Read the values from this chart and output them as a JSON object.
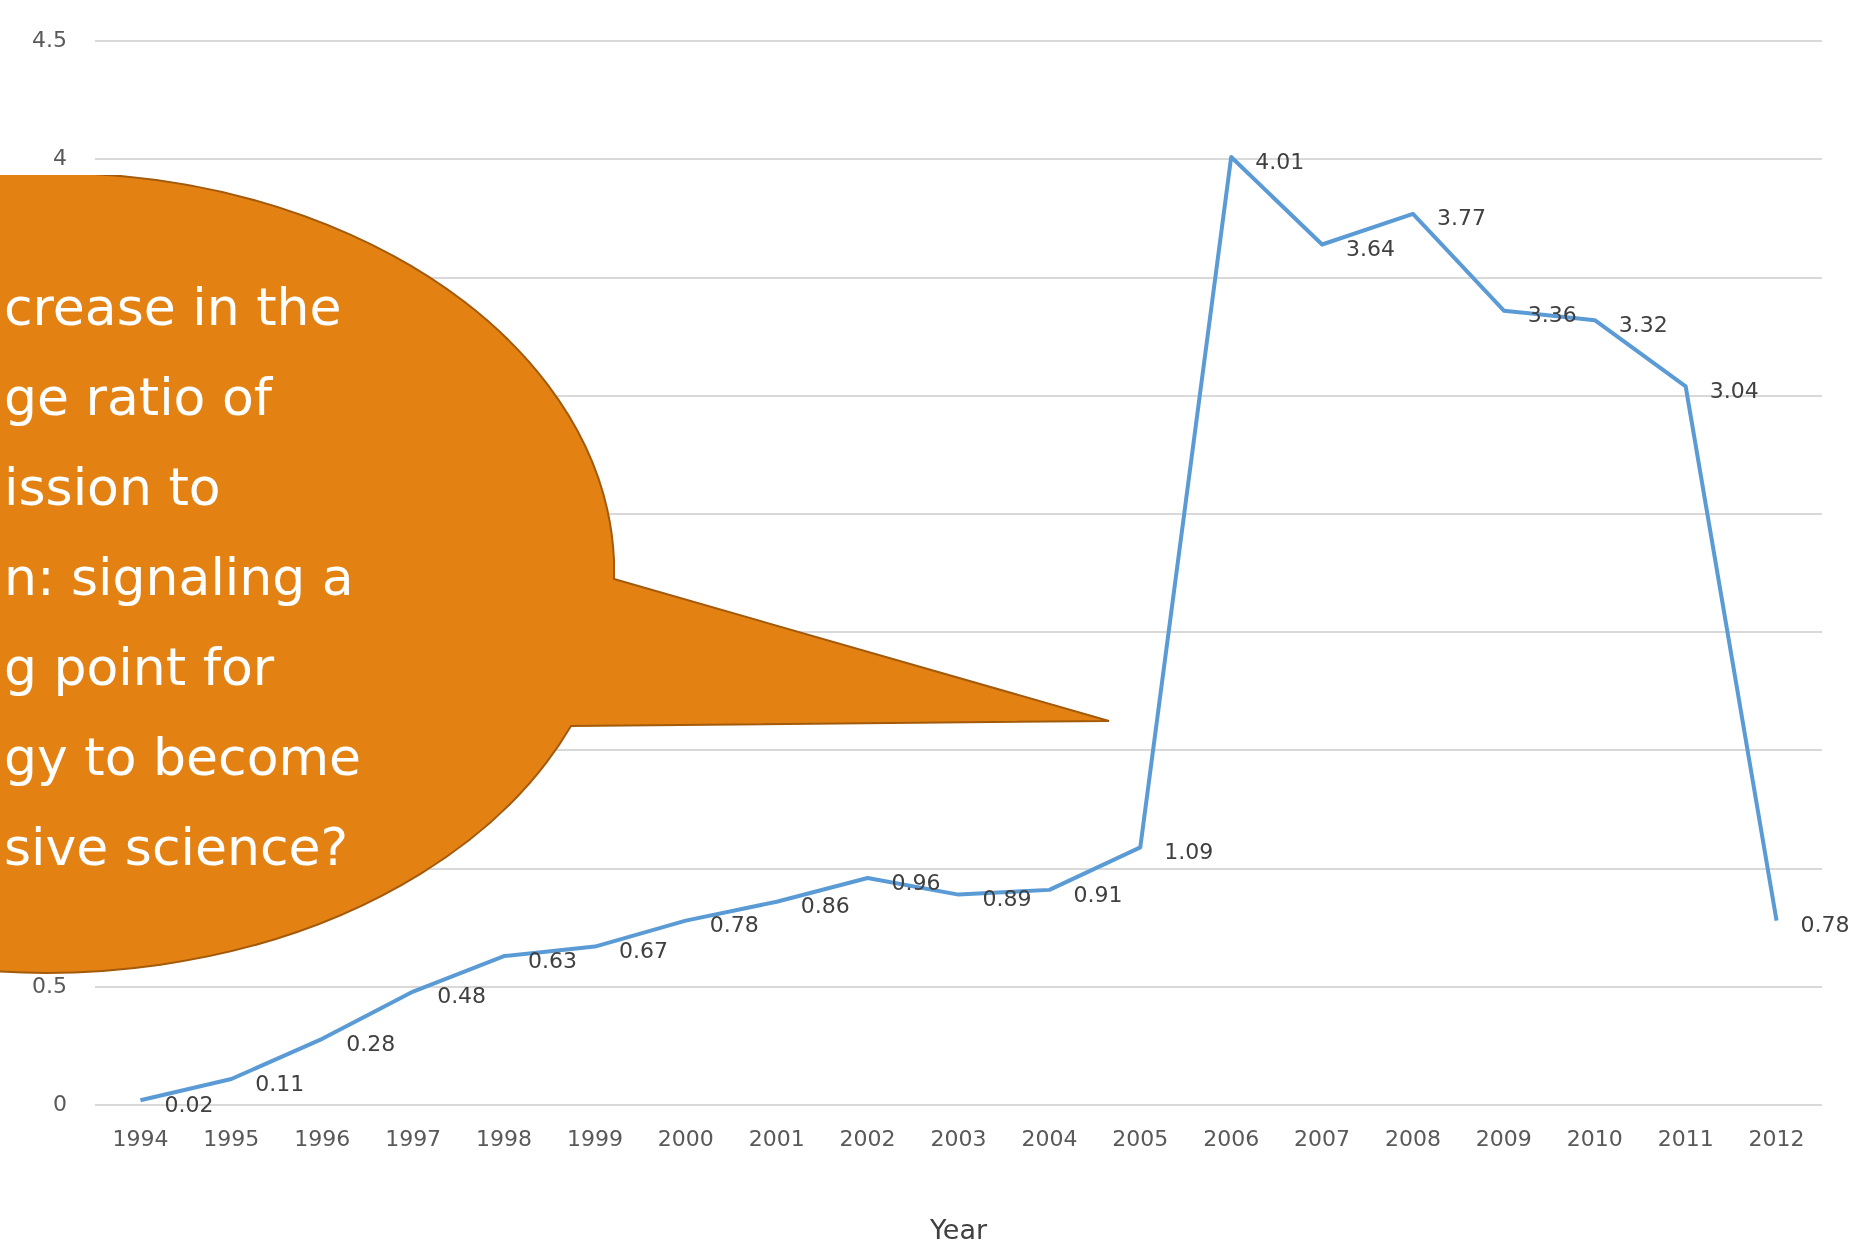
{
  "chart_data": {
    "type": "line",
    "xlabel": "Year",
    "categories": [
      "1994",
      "1995",
      "1996",
      "1997",
      "1998",
      "1999",
      "2000",
      "2001",
      "2002",
      "2003",
      "2004",
      "2005",
      "2006",
      "2007",
      "2008",
      "2009",
      "2010",
      "2011",
      "2012"
    ],
    "series": [
      {
        "color": "#5b9bd5",
        "values": [
          0.02,
          0.11,
          0.28,
          0.48,
          0.63,
          0.67,
          0.78,
          0.86,
          0.96,
          0.89,
          0.91,
          1.09,
          4.01,
          3.64,
          3.77,
          3.36,
          3.32,
          3.04,
          0.78
        ]
      }
    ],
    "ylim": [
      0,
      4.5
    ],
    "yticks": [
      0,
      0.5,
      {
        "value": 1,
        "label": null
      },
      {
        "value": 1.5,
        "label": null
      },
      {
        "value": 2,
        "label": null
      },
      {
        "value": 2.5,
        "label": null
      },
      {
        "value": 3,
        "label": null
      },
      {
        "value": 3.5,
        "label": null
      },
      4,
      4.5
    ],
    "grid": "y",
    "legend": false,
    "marker": "none",
    "line_style": "solid",
    "data_labels": true,
    "annotations": [
      "crease in the\nge ratio of\nission to\nn: signaling a\ng point for\ngy to become\nsive science?"
    ]
  }
}
